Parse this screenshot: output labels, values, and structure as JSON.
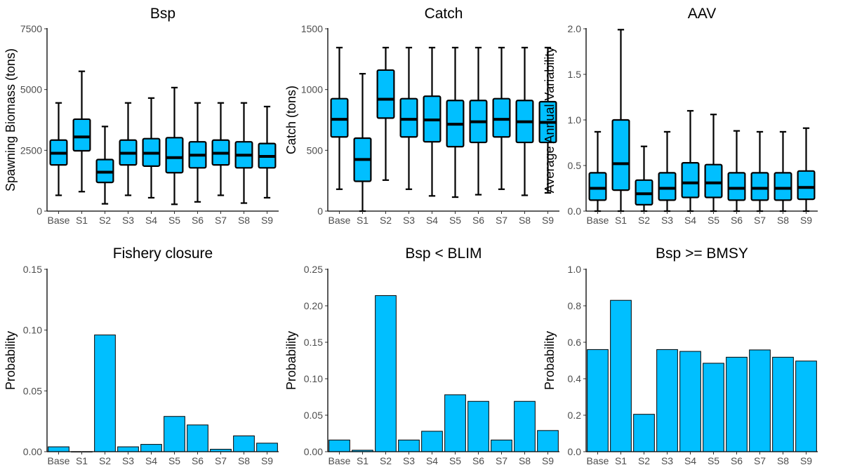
{
  "colors": {
    "fill": "#00BFFF",
    "stroke": "#000000"
  },
  "chart_data": [
    {
      "type": "boxplot",
      "title": "Bsp",
      "ylabel": "Spawning Biomass (tons)",
      "ylim": [
        0,
        7500
      ],
      "yticks": [
        0,
        2500,
        5000,
        7500
      ],
      "categories": [
        "Base",
        "S1",
        "S2",
        "S3",
        "S4",
        "S5",
        "S6",
        "S7",
        "S8",
        "S9"
      ],
      "boxes": [
        {
          "min": 650,
          "q1": 1900,
          "median": 2380,
          "q3": 2920,
          "max": 4450
        },
        {
          "min": 800,
          "q1": 2480,
          "median": 3050,
          "q3": 3780,
          "max": 5750
        },
        {
          "min": 300,
          "q1": 1180,
          "median": 1600,
          "q3": 2120,
          "max": 3480
        },
        {
          "min": 650,
          "q1": 1900,
          "median": 2380,
          "q3": 2920,
          "max": 4450
        },
        {
          "min": 550,
          "q1": 1850,
          "median": 2380,
          "q3": 2980,
          "max": 4650
        },
        {
          "min": 280,
          "q1": 1580,
          "median": 2200,
          "q3": 3020,
          "max": 5080
        },
        {
          "min": 380,
          "q1": 1780,
          "median": 2300,
          "q3": 2850,
          "max": 4450
        },
        {
          "min": 650,
          "q1": 1900,
          "median": 2380,
          "q3": 2920,
          "max": 4450
        },
        {
          "min": 330,
          "q1": 1780,
          "median": 2300,
          "q3": 2850,
          "max": 4450
        },
        {
          "min": 550,
          "q1": 1780,
          "median": 2250,
          "q3": 2780,
          "max": 4300
        }
      ]
    },
    {
      "type": "boxplot",
      "title": "Catch",
      "ylabel": "Catch (tons)",
      "ylim": [
        0,
        1500
      ],
      "yticks": [
        0,
        500,
        1000,
        1500
      ],
      "categories": [
        "Base",
        "S1",
        "S2",
        "S3",
        "S4",
        "S5",
        "S6",
        "S7",
        "S8",
        "S9"
      ],
      "boxes": [
        {
          "min": 180,
          "q1": 610,
          "median": 755,
          "q3": 925,
          "max": 1345
        },
        {
          "min": 0,
          "q1": 245,
          "median": 425,
          "q3": 600,
          "max": 1130
        },
        {
          "min": 255,
          "q1": 765,
          "median": 920,
          "q3": 1160,
          "max": 1345
        },
        {
          "min": 180,
          "q1": 610,
          "median": 755,
          "q3": 925,
          "max": 1345
        },
        {
          "min": 125,
          "q1": 570,
          "median": 750,
          "q3": 945,
          "max": 1345
        },
        {
          "min": 115,
          "q1": 530,
          "median": 715,
          "q3": 910,
          "max": 1345
        },
        {
          "min": 135,
          "q1": 565,
          "median": 735,
          "q3": 910,
          "max": 1345
        },
        {
          "min": 180,
          "q1": 610,
          "median": 755,
          "q3": 925,
          "max": 1345
        },
        {
          "min": 130,
          "q1": 565,
          "median": 735,
          "q3": 910,
          "max": 1345
        },
        {
          "min": 150,
          "q1": 565,
          "median": 730,
          "q3": 900,
          "max": 1345
        }
      ]
    },
    {
      "type": "boxplot",
      "title": "AAV",
      "ylabel": "Average Annual Variability",
      "ylim": [
        0,
        2.0
      ],
      "yticks": [
        0.0,
        0.5,
        1.0,
        1.5,
        2.0
      ],
      "ytick_labels": [
        "0.0",
        "0.5",
        "1.0",
        "1.5",
        "2.0"
      ],
      "categories": [
        "Base",
        "S1",
        "S2",
        "S3",
        "S4",
        "S5",
        "S6",
        "S7",
        "S8",
        "S9"
      ],
      "boxes": [
        {
          "min": 0,
          "q1": 0.12,
          "median": 0.25,
          "q3": 0.42,
          "max": 0.87
        },
        {
          "min": 0,
          "q1": 0.23,
          "median": 0.52,
          "q3": 1.0,
          "max": 1.99
        },
        {
          "min": 0,
          "q1": 0.07,
          "median": 0.19,
          "q3": 0.34,
          "max": 0.71
        },
        {
          "min": 0,
          "q1": 0.12,
          "median": 0.25,
          "q3": 0.42,
          "max": 0.87
        },
        {
          "min": 0,
          "q1": 0.15,
          "median": 0.31,
          "q3": 0.53,
          "max": 1.1
        },
        {
          "min": 0,
          "q1": 0.15,
          "median": 0.31,
          "q3": 0.51,
          "max": 1.06
        },
        {
          "min": 0,
          "q1": 0.12,
          "median": 0.25,
          "q3": 0.42,
          "max": 0.88
        },
        {
          "min": 0,
          "q1": 0.12,
          "median": 0.25,
          "q3": 0.42,
          "max": 0.87
        },
        {
          "min": 0,
          "q1": 0.12,
          "median": 0.25,
          "q3": 0.42,
          "max": 0.87
        },
        {
          "min": 0,
          "q1": 0.13,
          "median": 0.26,
          "q3": 0.44,
          "max": 0.91
        }
      ]
    },
    {
      "type": "bar",
      "title": "Fishery closure",
      "ylabel": "Probability",
      "ylim": [
        0,
        0.15
      ],
      "yticks": [
        0.0,
        0.05,
        0.1,
        0.15
      ],
      "ytick_labels": [
        "0.00",
        "0.05",
        "0.10",
        "0.15"
      ],
      "categories": [
        "Base",
        "S1",
        "S2",
        "S3",
        "S4",
        "S5",
        "S6",
        "S7",
        "S8",
        "S9"
      ],
      "values": [
        0.004,
        0.0,
        0.096,
        0.004,
        0.006,
        0.029,
        0.022,
        0.002,
        0.013,
        0.007
      ]
    },
    {
      "type": "bar",
      "title": "Bsp < BLIM",
      "ylabel": "Probability",
      "ylim": [
        0,
        0.25
      ],
      "yticks": [
        0.0,
        0.05,
        0.1,
        0.15,
        0.2,
        0.25
      ],
      "ytick_labels": [
        "0.00",
        "0.05",
        "0.10",
        "0.15",
        "0.20",
        "0.25"
      ],
      "categories": [
        "Base",
        "S1",
        "S2",
        "S3",
        "S4",
        "S5",
        "S6",
        "S7",
        "S8",
        "S9"
      ],
      "values": [
        0.016,
        0.002,
        0.214,
        0.016,
        0.028,
        0.078,
        0.069,
        0.016,
        0.069,
        0.029
      ]
    },
    {
      "type": "bar",
      "title": "Bsp >= BMSY",
      "ylabel": "Probability",
      "ylim": [
        0,
        1.0
      ],
      "yticks": [
        0.0,
        0.2,
        0.4,
        0.6,
        0.8,
        1.0
      ],
      "ytick_labels": [
        "0.0",
        "0.2",
        "0.4",
        "0.6",
        "0.8",
        "1.0"
      ],
      "categories": [
        "Base",
        "S1",
        "S2",
        "S3",
        "S4",
        "S5",
        "S6",
        "S7",
        "S8",
        "S9"
      ],
      "values": [
        0.56,
        0.83,
        0.205,
        0.56,
        0.55,
        0.485,
        0.518,
        0.558,
        0.518,
        0.497
      ]
    }
  ]
}
